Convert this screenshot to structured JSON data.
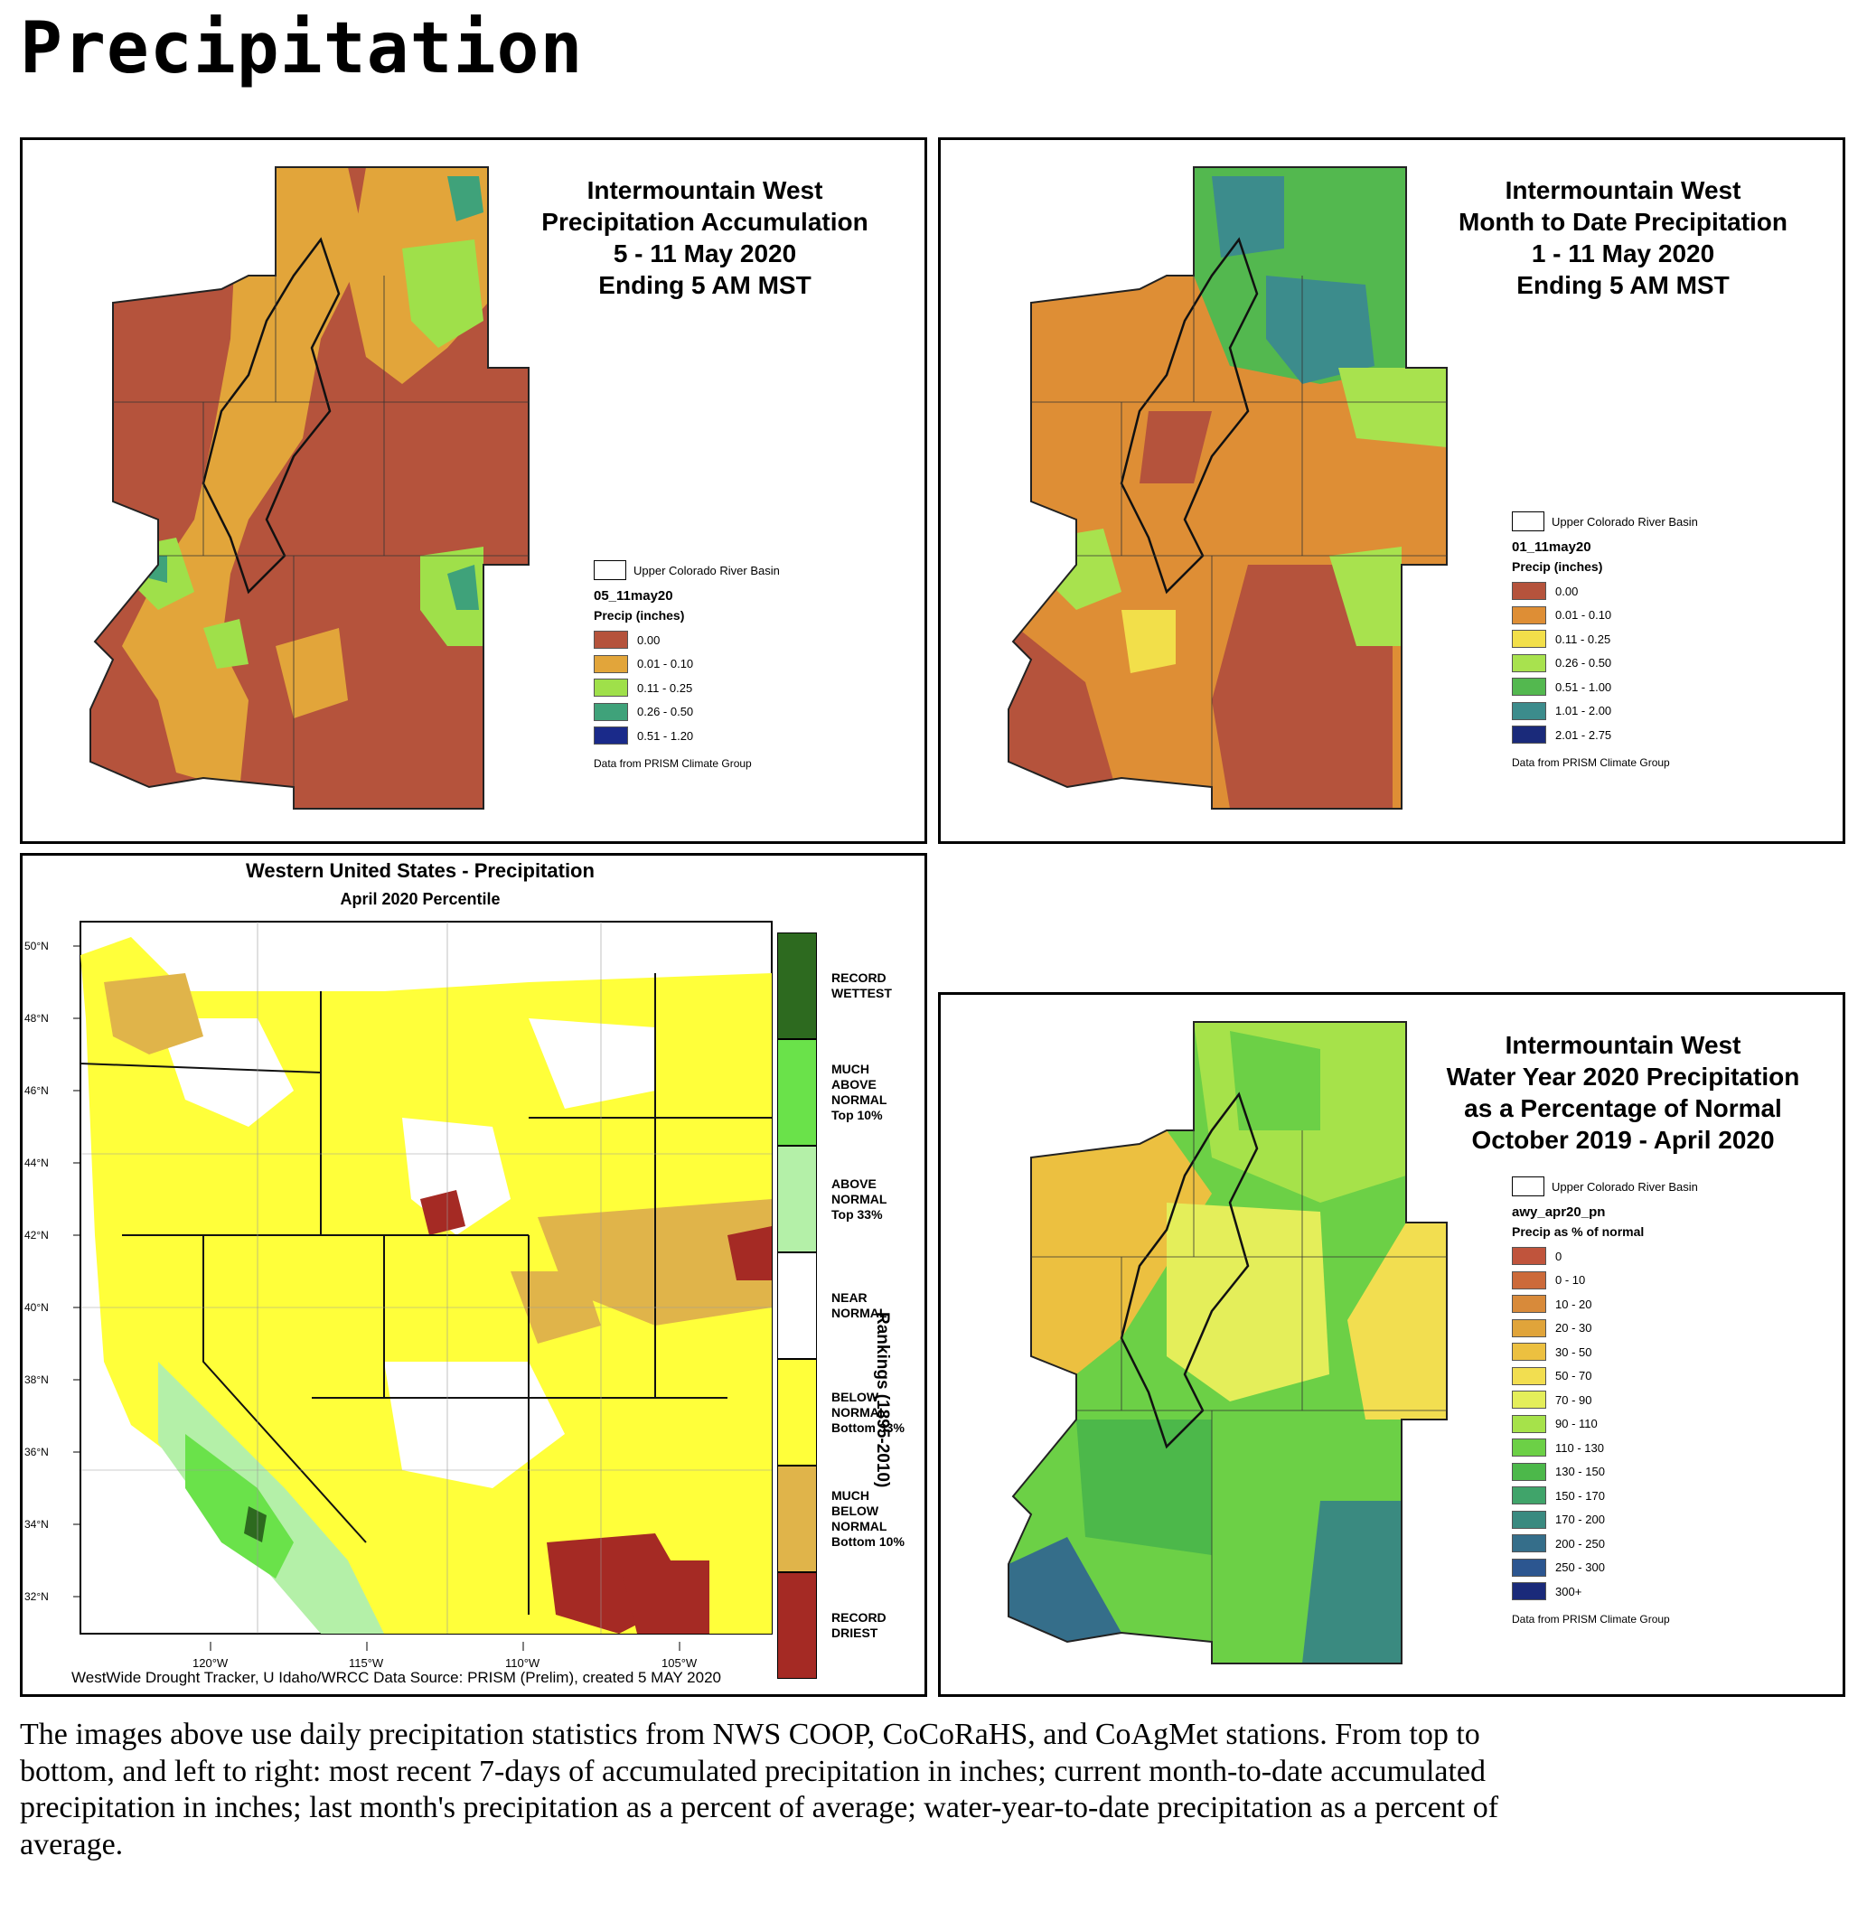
{
  "page": {
    "title": "Precipitation",
    "caption": "The images above use daily precipitation statistics from NWS COOP, CoCoRaHS, and CoAgMet stations. From top to bottom, and left to right: most recent 7-days of accumulated precipitation in inches; current month-to-date accumulated precipitation in inches; last month's precipitation as a percent of average; water-year-to-date precipitation as a percent of average."
  },
  "maps": {
    "accumulation": {
      "title": [
        "Intermountain West",
        "Precipitation Accumulation",
        "5 - 11 May 2020",
        "Ending 5 AM MST"
      ],
      "basin_label": "Upper Colorado River Basin",
      "dataset": "05_11may20",
      "units": "Precip (inches)",
      "source": "Data from PRISM Climate Group",
      "legend": [
        {
          "label": "0.00",
          "color": "#b5533c"
        },
        {
          "label": "0.01 - 0.10",
          "color": "#e2a53a"
        },
        {
          "label": "0.11 - 0.25",
          "color": "#9fe04a"
        },
        {
          "label": "0.26 - 0.50",
          "color": "#3fa27a"
        },
        {
          "label": "0.51 - 1.20",
          "color": "#1a2a8a"
        }
      ]
    },
    "month_to_date": {
      "title": [
        "Intermountain West",
        "Month to Date Precipitation",
        "1 - 11 May 2020",
        "Ending 5 AM MST"
      ],
      "basin_label": "Upper Colorado River Basin",
      "dataset": "01_11may20",
      "units": "Precip (inches)",
      "source": "Data from PRISM Climate Group",
      "legend": [
        {
          "label": "0.00",
          "color": "#b5533c"
        },
        {
          "label": "0.01 - 0.10",
          "color": "#de8e35"
        },
        {
          "label": "0.11 - 0.25",
          "color": "#f2df4a"
        },
        {
          "label": "0.26 - 0.50",
          "color": "#a8e24e"
        },
        {
          "label": "0.51 - 1.00",
          "color": "#53b84f"
        },
        {
          "label": "1.01 - 2.00",
          "color": "#3c8c8c"
        },
        {
          "label": "2.01 - 2.75",
          "color": "#1a2a7a"
        }
      ]
    },
    "western_us": {
      "title": "Western United States - Precipitation",
      "subtitle": "April 2020 Percentile",
      "axis_label": "Rankings (1895-2010)",
      "credit": "WestWide Drought Tracker, U Idaho/WRCC Data Source: PRISM (Prelim), created  5 MAY 2020",
      "lat_ticks": [
        "50°N",
        "48°N",
        "46°N",
        "44°N",
        "42°N",
        "40°N",
        "38°N",
        "36°N",
        "34°N",
        "32°N"
      ],
      "lon_ticks": [
        "120°W",
        "115°W",
        "110°W",
        "105°W"
      ],
      "legend": [
        {
          "label": "RECORD\nWETTEST",
          "color": "#2d6a1f"
        },
        {
          "label": "MUCH\nABOVE\nNORMAL\nTop 10%",
          "color": "#6ae24a"
        },
        {
          "label": "ABOVE\nNORMAL\nTop 33%",
          "color": "#b4f0a8"
        },
        {
          "label": "NEAR\nNORMAL",
          "color": "#ffffff"
        },
        {
          "label": "BELOW\nNORMAL\nBottom 33%",
          "color": "#ffff3a"
        },
        {
          "label": "MUCH\nBELOW\nNORMAL\nBottom 10%",
          "color": "#e0b44a"
        },
        {
          "label": "RECORD\nDRIEST",
          "color": "#a52a24"
        }
      ]
    },
    "water_year": {
      "title": [
        "Intermountain West",
        "Water Year 2020 Precipitation",
        "as a Percentage of Normal",
        "October 2019 - April 2020"
      ],
      "basin_label": "Upper Colorado River Basin",
      "dataset": "awy_apr20_pn",
      "units": "Precip as % of normal",
      "source": "Data from PRISM Climate Group",
      "legend": [
        {
          "label": "0",
          "color": "#c0543c"
        },
        {
          "label": "0 - 10",
          "color": "#cc6a3a"
        },
        {
          "label": "10 - 20",
          "color": "#d88a3a"
        },
        {
          "label": "20 - 30",
          "color": "#e0a43a"
        },
        {
          "label": "30 - 50",
          "color": "#ecc040"
        },
        {
          "label": "50 - 70",
          "color": "#f2de50"
        },
        {
          "label": "70 - 90",
          "color": "#e4ee5a"
        },
        {
          "label": "90 - 110",
          "color": "#a6e24a"
        },
        {
          "label": "110 - 130",
          "color": "#6cd046"
        },
        {
          "label": "130 - 150",
          "color": "#4cb84a"
        },
        {
          "label": "150 - 170",
          "color": "#40a46a"
        },
        {
          "label": "170 - 200",
          "color": "#3a8a80"
        },
        {
          "label": "200 - 250",
          "color": "#356e8a"
        },
        {
          "label": "250 - 300",
          "color": "#2c5690"
        },
        {
          "label": "300+",
          "color": "#1a2a7a"
        }
      ]
    }
  }
}
